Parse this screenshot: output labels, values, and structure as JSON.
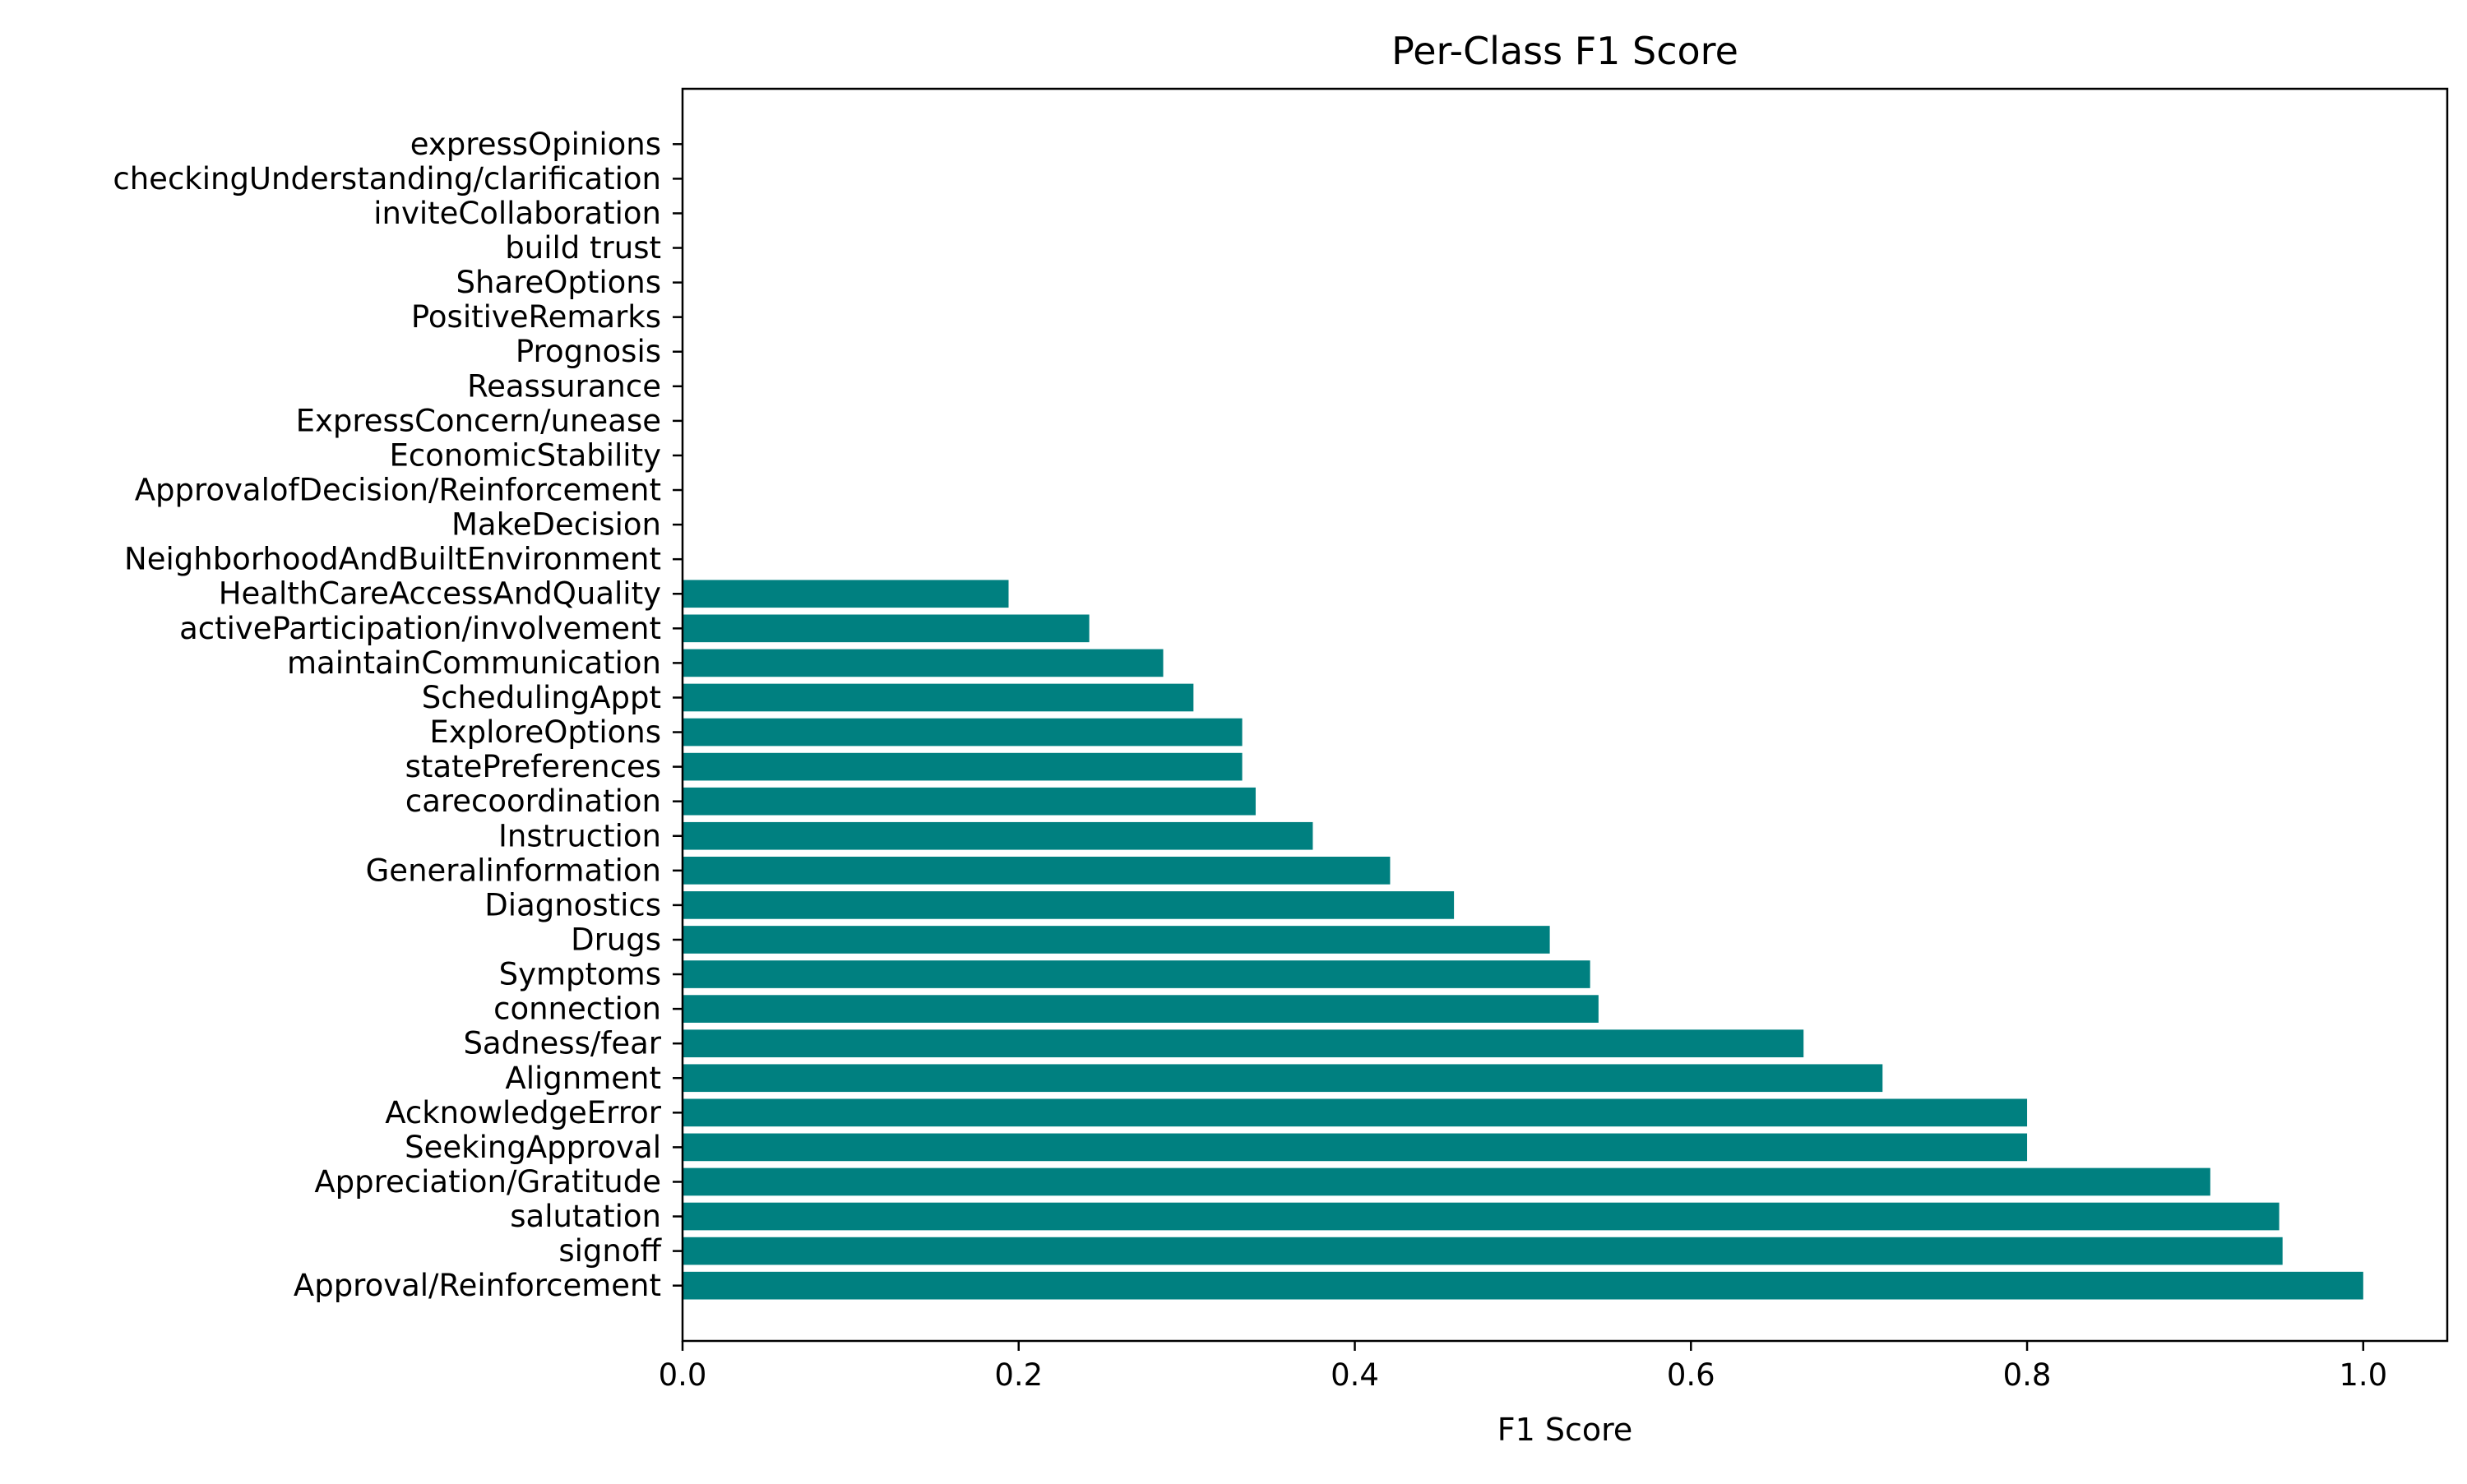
{
  "chart_data": {
    "type": "bar",
    "orientation": "horizontal",
    "title": "Per-Class F1 Score",
    "xlabel": "F1 Score",
    "ylabel": "",
    "xlim": [
      0,
      1.05
    ],
    "x_ticks": [
      0.0,
      0.2,
      0.4,
      0.6,
      0.8,
      1.0
    ],
    "x_tick_labels": [
      "0.0",
      "0.2",
      "0.4",
      "0.6",
      "0.8",
      "1.0"
    ],
    "bar_color": "#008080",
    "grid": false,
    "legend": "none",
    "categories": [
      "Approval/Reinforcement",
      "signoff",
      "salutation",
      "Appreciation/Gratitude",
      "SeekingApproval",
      "AcknowledgeError",
      "Alignment",
      "Sadness/fear",
      "connection",
      "Symptoms",
      "Drugs",
      "Diagnostics",
      "Generalinformation",
      "Instruction",
      "carecoordination",
      "statePreferences",
      "ExploreOptions",
      "SchedulingAppt",
      "maintainCommunication",
      "activeParticipation/involvement",
      "HealthCareAccessAndQuality",
      "NeighborhoodAndBuiltEnvironment",
      "MakeDecision",
      "ApprovalofDecision/Reinforcement",
      "EconomicStability",
      "ExpressConcern/unease",
      "Reassurance",
      "Prognosis",
      "PositiveRemarks",
      "ShareOptions",
      "build trust",
      "inviteCollaboration",
      "checkingUnderstanding/clarification",
      "expressOpinions"
    ],
    "values": [
      1.0,
      0.952,
      0.95,
      0.909,
      0.8,
      0.8,
      0.714,
      0.667,
      0.545,
      0.54,
      0.516,
      0.459,
      0.421,
      0.375,
      0.341,
      0.333,
      0.333,
      0.304,
      0.286,
      0.242,
      0.194,
      0.0,
      0.0,
      0.0,
      0.0,
      0.0,
      0.0,
      0.0,
      0.0,
      0.0,
      0.0,
      0.0,
      0.0,
      0.0
    ]
  }
}
